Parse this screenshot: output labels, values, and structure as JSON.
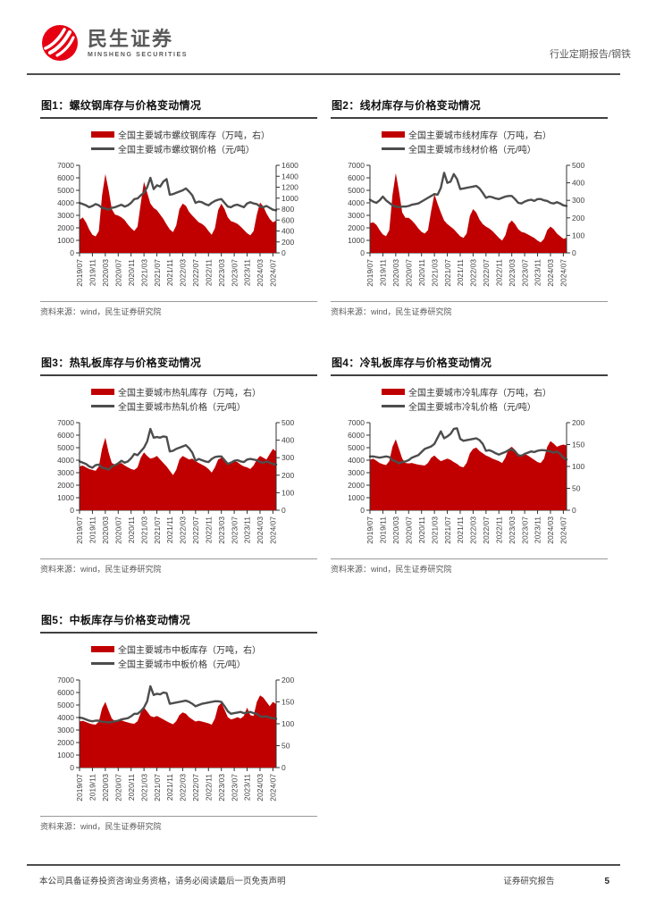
{
  "page": {
    "brand_cn": "民生证券",
    "brand_en": "MINSHENG SECURITIES",
    "report_type": "行业定期报告/钢铁",
    "source_note": "资料来源：wind，民生证券研究院",
    "footer_disclaimer": "本公司具备证券投资咨询业务资格，请务必阅读最后一页免责声明",
    "footer_report_label": "证券研究报告",
    "page_number": "5"
  },
  "colors": {
    "area": "#c00000",
    "line": "#4d4d4d",
    "axis": "#333333",
    "logo_red": "#e60012"
  },
  "x_axis": {
    "tick_labels": [
      "2019/07",
      "2019/11",
      "2020/03",
      "2020/07",
      "2020/11",
      "2021/03",
      "2021/07",
      "2021/11",
      "2022/03",
      "2022/07",
      "2022/11",
      "2023/03",
      "2023/07",
      "2023/11",
      "2024/03",
      "2024/07"
    ],
    "tick_every": 4,
    "n_points": 62,
    "sampling": "monthly 2019/07 - 2024/08"
  },
  "chart_data": [
    {
      "type": "area",
      "title": "图1：螺纹钢库存与价格变动情况",
      "legend": [
        "全国主要城市螺纹钢库存（万吨，右）",
        "全国主要城市螺纹钢价格（元/吨）"
      ],
      "left_axis": {
        "min": 0,
        "max": 7000,
        "step": 1000
      },
      "right_axis": {
        "min": 0,
        "max": 1600,
        "step": 200
      },
      "series": [
        {
          "name": "全国主要城市螺纹钢库存",
          "axis": "right",
          "style": "area",
          "values": [
            600,
            650,
            560,
            430,
            330,
            300,
            400,
            1050,
            1440,
            1150,
            800,
            700,
            680,
            650,
            600,
            520,
            450,
            400,
            480,
            900,
            1300,
            1100,
            900,
            820,
            780,
            700,
            620,
            520,
            430,
            380,
            500,
            800,
            900,
            860,
            750,
            680,
            620,
            560,
            530,
            480,
            400,
            330,
            450,
            780,
            900,
            800,
            650,
            580,
            560,
            530,
            480,
            420,
            360,
            320,
            400,
            700,
            920,
            850,
            720,
            620,
            560,
            590
          ]
        },
        {
          "name": "全国主要城市螺纹钢价格",
          "axis": "left",
          "style": "line",
          "values": [
            4000,
            3900,
            3800,
            3650,
            3750,
            3900,
            3800,
            3600,
            3550,
            3450,
            3600,
            3650,
            3750,
            3850,
            3700,
            3800,
            4000,
            4300,
            4350,
            4600,
            4800,
            5250,
            6000,
            5100,
            5400,
            5300,
            5700,
            5900,
            4650,
            4700,
            4800,
            4900,
            5000,
            5150,
            4900,
            4600,
            4000,
            4100,
            4050,
            3900,
            3800,
            4000,
            4150,
            4250,
            4300,
            4000,
            3700,
            3650,
            3800,
            3850,
            3750,
            3650,
            3950,
            4050,
            3950,
            3900,
            3700,
            3650,
            3750,
            3600,
            3450,
            3400
          ]
        }
      ]
    },
    {
      "type": "area",
      "title": "图2：线材库存与价格变动情况",
      "legend": [
        "全国主要城市线材库存（万吨，右）",
        "全国主要城市线材价格（元/吨）"
      ],
      "left_axis": {
        "min": 0,
        "max": 7000,
        "step": 1000
      },
      "right_axis": {
        "min": 0,
        "max": 500,
        "step": 100
      },
      "series": [
        {
          "name": "全国主要城市线材库存",
          "axis": "right",
          "style": "area",
          "values": [
            170,
            175,
            160,
            130,
            105,
            95,
            130,
            330,
            455,
            350,
            230,
            200,
            200,
            185,
            165,
            140,
            120,
            110,
            130,
            240,
            335,
            280,
            230,
            185,
            165,
            150,
            135,
            115,
            95,
            85,
            110,
            210,
            250,
            230,
            190,
            165,
            150,
            140,
            125,
            105,
            85,
            70,
            100,
            165,
            185,
            165,
            135,
            120,
            115,
            105,
            95,
            85,
            70,
            60,
            80,
            130,
            150,
            135,
            110,
            95,
            80,
            85
          ]
        },
        {
          "name": "全国主要城市线材价格",
          "axis": "left",
          "style": "line",
          "values": [
            4250,
            4100,
            4000,
            4200,
            4500,
            4200,
            4000,
            3800,
            3700,
            3650,
            3700,
            3700,
            3750,
            3850,
            3900,
            3950,
            4100,
            4250,
            4400,
            4550,
            4700,
            4650,
            5200,
            6400,
            5600,
            5700,
            6300,
            5900,
            5100,
            5150,
            5200,
            5250,
            5300,
            5350,
            5150,
            4800,
            4400,
            4500,
            4450,
            4350,
            4300,
            4400,
            4500,
            4550,
            4550,
            4300,
            4000,
            3950,
            4100,
            4200,
            4250,
            4150,
            4300,
            4300,
            4200,
            4150,
            4000,
            3950,
            4050,
            3950,
            3800,
            3750
          ]
        }
      ]
    },
    {
      "type": "area",
      "title": "图3：热轧板库存与价格变动情况",
      "legend": [
        "全国主要城市热轧库存（万吨，右）",
        "全国主要城市热轧价格（元/吨）"
      ],
      "left_axis": {
        "min": 0,
        "max": 7000,
        "step": 1000
      },
      "right_axis": {
        "min": 0,
        "max": 500,
        "step": 100
      },
      "series": [
        {
          "name": "全国主要城市热轧库存",
          "axis": "right",
          "style": "area",
          "values": [
            250,
            255,
            245,
            235,
            230,
            225,
            250,
            350,
            415,
            330,
            270,
            260,
            265,
            270,
            255,
            245,
            235,
            230,
            245,
            300,
            330,
            310,
            295,
            300,
            310,
            290,
            270,
            250,
            225,
            200,
            230,
            290,
            310,
            300,
            290,
            295,
            280,
            270,
            260,
            250,
            235,
            215,
            245,
            290,
            300,
            280,
            260,
            270,
            280,
            275,
            260,
            250,
            245,
            235,
            255,
            290,
            310,
            300,
            290,
            320,
            350,
            335
          ]
        },
        {
          "name": "全国主要城市热轧价格",
          "axis": "left",
          "style": "line",
          "values": [
            3900,
            3800,
            3700,
            3500,
            3400,
            3600,
            3650,
            3400,
            3350,
            3250,
            3500,
            3600,
            3750,
            3950,
            3800,
            3900,
            4150,
            4500,
            4400,
            4700,
            5000,
            5500,
            6500,
            5800,
            5850,
            5800,
            5900,
            5850,
            4700,
            4750,
            4900,
            5000,
            5100,
            5200,
            4950,
            4600,
            3950,
            4100,
            4000,
            3900,
            3850,
            4100,
            4250,
            4300,
            4300,
            4000,
            3700,
            3800,
            3950,
            4000,
            3900,
            3850,
            4050,
            4100,
            4050,
            4000,
            3850,
            3800,
            3900,
            3800,
            3700,
            3650
          ]
        }
      ]
    },
    {
      "type": "area",
      "title": "图4：冷轧板库存与价格变动情况",
      "legend": [
        "全国主要城市冷轧库存（万吨，右）",
        "全国主要城市冷轧价格（元/吨）"
      ],
      "left_axis": {
        "min": 0,
        "max": 7000,
        "step": 1000
      },
      "right_axis": {
        "min": 0,
        "max": 200,
        "step": 50
      },
      "series": [
        {
          "name": "全国主要城市冷轧库存",
          "axis": "right",
          "style": "area",
          "values": [
            115,
            118,
            113,
            108,
            105,
            103,
            112,
            145,
            162,
            140,
            118,
            108,
            107,
            108,
            106,
            104,
            103,
            102,
            108,
            120,
            125,
            118,
            112,
            115,
            118,
            115,
            110,
            106,
            100,
            98,
            108,
            130,
            140,
            143,
            135,
            130,
            125,
            122,
            118,
            115,
            112,
            108,
            120,
            140,
            145,
            138,
            128,
            125,
            128,
            125,
            120,
            115,
            110,
            108,
            118,
            145,
            158,
            152,
            145,
            148,
            150,
            148
          ]
        },
        {
          "name": "全国主要城市冷轧价格",
          "axis": "left",
          "style": "line",
          "values": [
            4300,
            4300,
            4250,
            4200,
            4250,
            4300,
            4250,
            4000,
            3900,
            3750,
            3850,
            3900,
            4000,
            4200,
            4300,
            4400,
            4650,
            4900,
            5000,
            5100,
            5300,
            5800,
            6300,
            5750,
            5900,
            6100,
            6500,
            6550,
            5700,
            5550,
            5600,
            5650,
            5700,
            5750,
            5600,
            5300,
            4750,
            4800,
            4700,
            4550,
            4450,
            4550,
            4650,
            4800,
            4900,
            4700,
            4400,
            4350,
            4500,
            4600,
            4700,
            4650,
            4750,
            4800,
            4800,
            4750,
            4700,
            4600,
            4700,
            4500,
            4200,
            4050
          ]
        }
      ]
    },
    {
      "type": "area",
      "title": "图5：中板库存与价格变动情况",
      "legend": [
        "全国主要城市中板库存（万吨，右）",
        "全国主要城市中板价格（元/吨）"
      ],
      "left_axis": {
        "min": 0,
        "max": 7000,
        "step": 1000
      },
      "right_axis": {
        "min": 0,
        "max": 200,
        "step": 50
      },
      "series": [
        {
          "name": "全国主要城市中板库存",
          "axis": "right",
          "style": "area",
          "values": [
            105,
            107,
            104,
            101,
            99,
            98,
            105,
            135,
            150,
            130,
            112,
            106,
            107,
            108,
            105,
            103,
            101,
            100,
            106,
            125,
            137,
            128,
            118,
            115,
            118,
            114,
            110,
            106,
            102,
            99,
            106,
            120,
            126,
            123,
            115,
            110,
            105,
            107,
            105,
            103,
            101,
            98,
            112,
            140,
            148,
            132,
            115,
            110,
            112,
            115,
            112,
            118,
            137,
            120,
            118,
            150,
            165,
            160,
            150,
            140,
            150,
            145
          ]
        },
        {
          "name": "全国主要城市中板价格",
          "axis": "left",
          "style": "line",
          "values": [
            4000,
            3950,
            3850,
            3750,
            3700,
            3750,
            3750,
            3650,
            3650,
            3600,
            3650,
            3700,
            3750,
            3850,
            3900,
            3950,
            4100,
            4300,
            4300,
            4500,
            4800,
            5300,
            6500,
            5800,
            5900,
            5850,
            6000,
            5950,
            5100,
            5150,
            5200,
            5250,
            5300,
            5350,
            5250,
            5100,
            4900,
            5000,
            5100,
            5150,
            5200,
            5250,
            5300,
            5300,
            5250,
            4900,
            4500,
            4300,
            4350,
            4400,
            4450,
            4350,
            4400,
            4450,
            4350,
            4300,
            4100,
            4050,
            4100,
            4000,
            3950,
            3900
          ]
        }
      ]
    }
  ]
}
